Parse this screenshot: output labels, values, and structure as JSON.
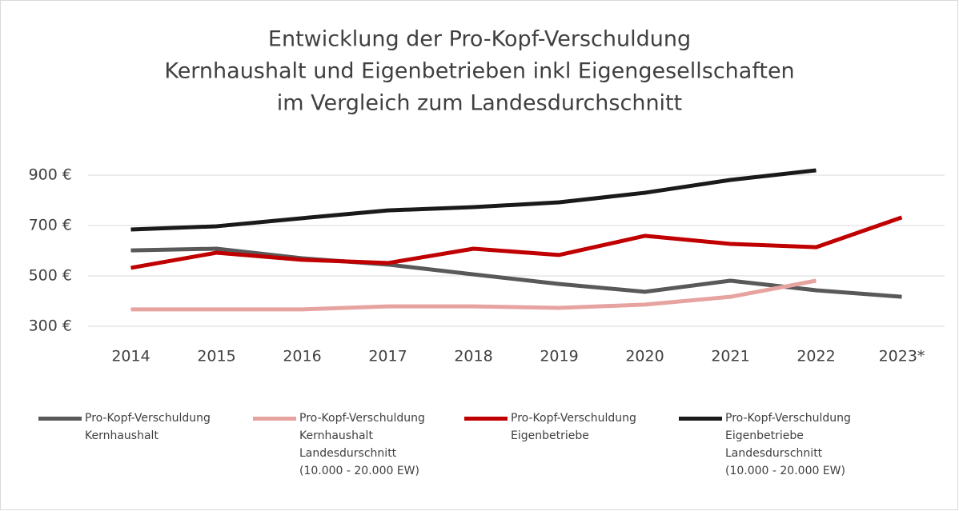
{
  "chart_data": {
    "type": "line",
    "title": [
      "Entwicklung der Pro-Kopf-Verschuldung",
      "Kernhaushalt und Eigenbetrieben inkl Eigengesellschaften",
      "im Vergleich zum Landesdurchschnitt"
    ],
    "categories": [
      "2014",
      "2015",
      "2016",
      "2017",
      "2018",
      "2019",
      "2020",
      "2021",
      "2022",
      "2023*"
    ],
    "series": [
      {
        "name": "Pro-Kopf-Verschuldung Kernhaushalt",
        "color": "#595959",
        "values": [
          601,
          608,
          570,
          545,
          506,
          468,
          437,
          481,
          443,
          417
        ]
      },
      {
        "name": "Pro-Kopf-Verschuldung Kernhaushalt Landesdurschnitt (10.000 - 20.000 EW)",
        "color": "#e6a3a0",
        "values": [
          367,
          367,
          367,
          379,
          379,
          373,
          386,
          417,
          481,
          null
        ]
      },
      {
        "name": "Pro-Kopf-Verschuldung Eigenbetriebe",
        "color": "#c00000",
        "values": [
          532,
          592,
          564,
          551,
          608,
          583,
          659,
          627,
          614,
          732
        ]
      },
      {
        "name": "Pro-Kopf-Verschuldung Eigenbetriebe Landesdurschnitt (10.000 - 20.000 EW)",
        "color": "#1a1a1a",
        "values": [
          684,
          697,
          729,
          760,
          773,
          792,
          830,
          881,
          919,
          null
        ]
      }
    ],
    "ylim": [
      300,
      900
    ],
    "yticks": [
      {
        "value": 300,
        "label": "300 €"
      },
      {
        "value": 500,
        "label": "500 €"
      },
      {
        "value": 700,
        "label": "700 €"
      },
      {
        "value": 900,
        "label": "900 €"
      }
    ],
    "grid": true,
    "legend": "bottom"
  }
}
